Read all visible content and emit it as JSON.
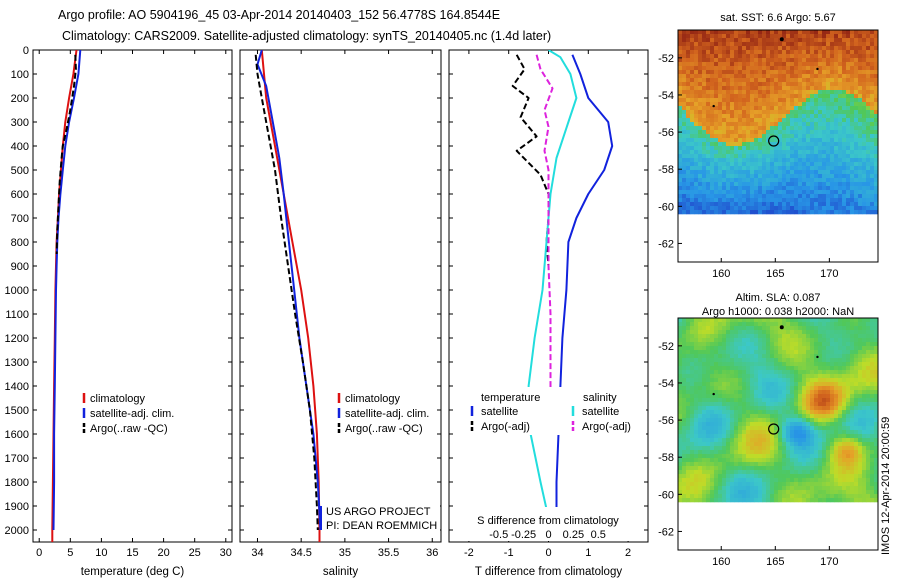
{
  "header": {
    "line1": "Argo profile: AO 5904196_45 03-Apr-2014 20140403_152 56.4778S 164.8544E",
    "line2": "Climatology: CARS2009. Satellite-adjusted climatology: synTS_20140405.nc (1.4d later)"
  },
  "colors": {
    "climatology": "#dd1111",
    "satellite": "#1122dd",
    "argo": "#000000",
    "t_satellite": "#1122dd",
    "s_satellite": "#22dddd",
    "s_argo": "#dd22dd"
  },
  "chart_data": [
    {
      "type": "line",
      "panel": "temperature",
      "xlabel": "temperature (deg C)",
      "ylabel": "",
      "xlim": [
        -1,
        31
      ],
      "ylim": [
        2050,
        0
      ],
      "x_ticks": [
        0,
        5,
        10,
        15,
        20,
        25,
        30
      ],
      "y_ticks": [
        0,
        100,
        200,
        300,
        400,
        500,
        600,
        700,
        800,
        900,
        1000,
        1100,
        1200,
        1300,
        1400,
        1500,
        1600,
        1700,
        1800,
        1900,
        2000
      ],
      "legend": [
        "climatology",
        "satellite-adj. clim.",
        "Argo(..raw -QC)"
      ],
      "series": [
        {
          "name": "climatology",
          "color_key": "climatology",
          "dash": false,
          "points": [
            [
              6.0,
              0
            ],
            [
              5.5,
              100
            ],
            [
              4.8,
              200
            ],
            [
              4.2,
              300
            ],
            [
              3.8,
              400
            ],
            [
              3.5,
              500
            ],
            [
              3.2,
              600
            ],
            [
              3.0,
              700
            ],
            [
              2.8,
              800
            ],
            [
              2.7,
              900
            ],
            [
              2.6,
              1000
            ],
            [
              2.5,
              1200
            ],
            [
              2.4,
              1400
            ],
            [
              2.3,
              1600
            ],
            [
              2.2,
              1800
            ],
            [
              2.1,
              2000
            ],
            [
              2.1,
              2050
            ]
          ]
        },
        {
          "name": "satellite-adj. clim.",
          "color_key": "satellite",
          "dash": false,
          "points": [
            [
              6.6,
              0
            ],
            [
              6.3,
              100
            ],
            [
              5.6,
              200
            ],
            [
              4.8,
              300
            ],
            [
              4.2,
              400
            ],
            [
              3.8,
              500
            ],
            [
              3.4,
              600
            ],
            [
              3.1,
              700
            ],
            [
              2.9,
              800
            ],
            [
              2.8,
              900
            ],
            [
              2.7,
              1000
            ],
            [
              2.6,
              1200
            ],
            [
              2.5,
              1400
            ],
            [
              2.4,
              1600
            ],
            [
              2.4,
              1800
            ],
            [
              2.3,
              2000
            ]
          ]
        },
        {
          "name": "Argo(..raw -QC)",
          "color_key": "argo",
          "dash": true,
          "points": [
            [
              5.8,
              20
            ],
            [
              5.9,
              80
            ],
            [
              5.6,
              150
            ],
            [
              5.0,
              250
            ],
            [
              4.4,
              330
            ],
            [
              3.8,
              400
            ],
            [
              3.6,
              450
            ],
            [
              3.3,
              550
            ],
            [
              3.1,
              650
            ],
            [
              2.9,
              750
            ],
            [
              2.8,
              850
            ]
          ]
        }
      ]
    },
    {
      "type": "line",
      "panel": "salinity",
      "xlabel": "salinity",
      "ylabel": "",
      "xlim": [
        33.8,
        36.1
      ],
      "ylim": [
        2050,
        0
      ],
      "x_ticks": [
        34,
        34.5,
        35,
        35.5,
        36
      ],
      "legend": [
        "climatology",
        "satellite-adj. clim.",
        "Argo(..raw -QC)"
      ],
      "annotation": [
        "US ARGO PROJECT",
        "PI: DEAN ROEMMICH"
      ],
      "series": [
        {
          "name": "climatology",
          "color_key": "climatology",
          "dash": false,
          "points": [
            [
              34.05,
              0
            ],
            [
              34.1,
              200
            ],
            [
              34.2,
              400
            ],
            [
              34.3,
              600
            ],
            [
              34.4,
              800
            ],
            [
              34.5,
              1000
            ],
            [
              34.58,
              1200
            ],
            [
              34.64,
              1400
            ],
            [
              34.68,
              1600
            ],
            [
              34.7,
              1800
            ],
            [
              34.71,
              2000
            ],
            [
              34.71,
              2050
            ]
          ]
        },
        {
          "name": "satellite-adj. clim.",
          "color_key": "satellite",
          "dash": false,
          "points": [
            [
              34.05,
              0
            ],
            [
              34.0,
              60
            ],
            [
              34.1,
              150
            ],
            [
              34.15,
              250
            ],
            [
              34.2,
              350
            ],
            [
              34.25,
              450
            ],
            [
              34.3,
              600
            ],
            [
              34.36,
              800
            ],
            [
              34.42,
              1000
            ],
            [
              34.48,
              1200
            ],
            [
              34.56,
              1400
            ],
            [
              34.64,
              1600
            ],
            [
              34.69,
              1800
            ],
            [
              34.72,
              2000
            ]
          ]
        },
        {
          "name": "Argo(..raw -QC)",
          "color_key": "argo",
          "dash": true,
          "points": [
            [
              33.98,
              20
            ],
            [
              34.0,
              100
            ],
            [
              34.05,
              200
            ],
            [
              34.1,
              300
            ],
            [
              34.15,
              400
            ],
            [
              34.2,
              500
            ],
            [
              34.27,
              700
            ],
            [
              34.35,
              900
            ],
            [
              34.43,
              1100
            ],
            [
              34.52,
              1300
            ],
            [
              34.6,
              1500
            ],
            [
              34.65,
              1700
            ],
            [
              34.68,
              1900
            ],
            [
              34.69,
              2000
            ]
          ]
        }
      ]
    },
    {
      "type": "line",
      "panel": "difference",
      "xlabel": "T difference from climatology",
      "xlabel_top": "S difference from climatology",
      "xlim": [
        -2.5,
        2.5
      ],
      "ylim": [
        2050,
        0
      ],
      "x_ticks": [
        -2,
        -1,
        0,
        1,
        2
      ],
      "x_ticks_top": [
        -0.5,
        -0.25,
        0,
        0.25,
        0.5
      ],
      "x_ticks_top_labels": [
        "-0.5",
        "-0.25",
        "0",
        "0.25",
        "0.5"
      ],
      "legend": {
        "temperature": [
          "satellite",
          "Argo(-adj)"
        ],
        "salinity": [
          "satellite",
          "Argo(-adj)"
        ],
        "headers": [
          "temperature",
          "salinity"
        ]
      },
      "series": [
        {
          "name": "T satellite",
          "color_key": "t_satellite",
          "dash": false,
          "points": [
            [
              0.6,
              20
            ],
            [
              0.8,
              100
            ],
            [
              1.0,
              200
            ],
            [
              1.5,
              300
            ],
            [
              1.6,
              400
            ],
            [
              1.4,
              500
            ],
            [
              1.0,
              600
            ],
            [
              0.7,
              700
            ],
            [
              0.5,
              800
            ],
            [
              0.45,
              1000
            ],
            [
              0.35,
              1200
            ],
            [
              0.3,
              1400
            ],
            [
              0.25,
              1600
            ],
            [
              0.2,
              1800
            ],
            [
              0.2,
              2000
            ]
          ]
        },
        {
          "name": "T Argo(-adj)",
          "color_key": "argo",
          "dash": true,
          "points": [
            [
              -0.8,
              20
            ],
            [
              -0.6,
              80
            ],
            [
              -0.9,
              150
            ],
            [
              -0.5,
              200
            ],
            [
              -0.7,
              280
            ],
            [
              -0.3,
              360
            ],
            [
              -0.8,
              420
            ],
            [
              -0.2,
              520
            ],
            [
              0.0,
              600
            ],
            [
              0.0,
              700
            ],
            [
              -0.05,
              800
            ],
            [
              0.0,
              900
            ]
          ]
        },
        {
          "name": "S satellite",
          "color_key": "s_satellite",
          "dash": false,
          "points": [
            [
              0.0,
              0
            ],
            [
              0.3,
              30
            ],
            [
              0.55,
              100
            ],
            [
              0.7,
              200
            ],
            [
              0.5,
              300
            ],
            [
              0.2,
              450
            ],
            [
              0.05,
              600
            ],
            [
              -0.05,
              800
            ],
            [
              -0.15,
              1000
            ],
            [
              -0.35,
              1200
            ],
            [
              -0.5,
              1400
            ],
            [
              -0.45,
              1600
            ],
            [
              -0.2,
              1800
            ],
            [
              0.0,
              1950
            ],
            [
              0.0,
              2000
            ]
          ]
        },
        {
          "name": "S Argo(-adj)",
          "color_key": "s_argo",
          "dash": true,
          "points": [
            [
              -0.3,
              20
            ],
            [
              -0.2,
              80
            ],
            [
              0.1,
              160
            ],
            [
              -0.1,
              250
            ],
            [
              0.0,
              320
            ],
            [
              -0.1,
              420
            ],
            [
              0.0,
              500
            ],
            [
              0.0,
              600
            ],
            [
              0.0,
              750
            ],
            [
              0.0,
              900
            ],
            [
              0.05,
              1100
            ],
            [
              0.05,
              1300
            ],
            [
              0.05,
              1500
            ],
            [
              0.05,
              1600
            ]
          ]
        }
      ]
    },
    {
      "type": "heatmap",
      "panel": "sst-map",
      "title": "sat. SST: 6.6 Argo: 5.67",
      "xlim": [
        156,
        174.5
      ],
      "ylim": [
        -63,
        -50.5
      ],
      "x_ticks": [
        160,
        165,
        170
      ],
      "y_ticks": [
        -52,
        -54,
        -56,
        -58,
        -60,
        -62
      ],
      "argo_position": [
        164.85,
        -56.48
      ]
    },
    {
      "type": "heatmap",
      "panel": "sla-map",
      "title_lines": [
        "Altim. SLA: 0.087",
        "Argo h1000: 0.038 h2000: NaN"
      ],
      "xlim": [
        156,
        174.5
      ],
      "ylim": [
        -63,
        -50.5
      ],
      "x_ticks": [
        160,
        165,
        170
      ],
      "y_ticks": [
        -52,
        -54,
        -56,
        -58,
        -60,
        -62
      ],
      "argo_position": [
        164.85,
        -56.48
      ]
    }
  ],
  "footer": {
    "side_text": "IMOS 12-Apr-2014 20:00:59"
  }
}
